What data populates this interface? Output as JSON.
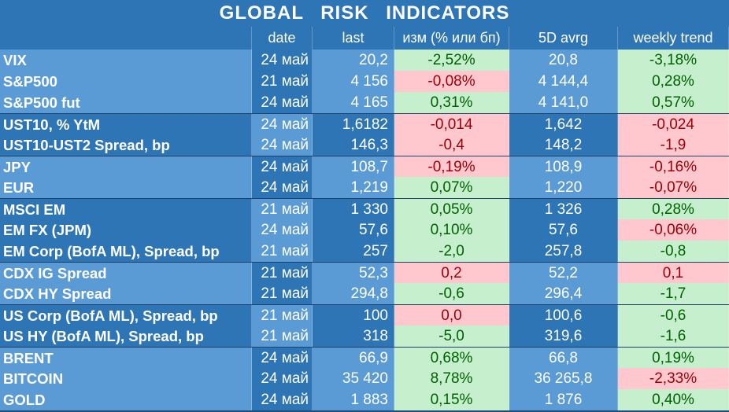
{
  "title": "GLOBAL   RISK   INDICATORS",
  "headers": [
    "",
    "date",
    "last",
    "изм (% или бп)",
    "5D avrg",
    "weekly trend"
  ],
  "rows": [
    {
      "name": "VIX",
      "date": "24 май",
      "last": "20,2",
      "chg": "-2,52%",
      "avg": "20,8",
      "trend": "-3,18%",
      "chg_sign": "pos",
      "trend_sign": "pos",
      "shade": "a",
      "group_start": false
    },
    {
      "name": "S&P500",
      "date": "21 май",
      "last": "4 156",
      "chg": "-0,08%",
      "avg": "4 144,4",
      "trend": "0,28%",
      "chg_sign": "neg",
      "trend_sign": "pos",
      "shade": "a",
      "group_start": false
    },
    {
      "name": "S&P500 fut",
      "date": "24 май",
      "last": "4 165",
      "chg": "0,31%",
      "avg": "4 141,0",
      "trend": "0,57%",
      "chg_sign": "pos",
      "trend_sign": "pos",
      "shade": "a",
      "group_start": false
    },
    {
      "name": "UST10, % YtM",
      "date": "24 май",
      "last": "1,6182",
      "chg": "-0,014",
      "avg": "1,642",
      "trend": "-0,024",
      "chg_sign": "neg",
      "trend_sign": "neg",
      "shade": "b",
      "group_start": true
    },
    {
      "name": "UST10-UST2 Spread, bp",
      "date": "24 май",
      "last": "146,3",
      "chg": "-0,4",
      "avg": "148,2",
      "trend": "-1,9",
      "chg_sign": "neg",
      "trend_sign": "neg",
      "shade": "b",
      "group_start": false
    },
    {
      "name": "JPY",
      "date": "24 май",
      "last": "108,7",
      "chg": "-0,19%",
      "avg": "108,9",
      "trend": "-0,16%",
      "chg_sign": "neg",
      "trend_sign": "neg",
      "shade": "a",
      "group_start": true
    },
    {
      "name": "EUR",
      "date": "24 май",
      "last": "1,219",
      "chg": "0,07%",
      "avg": "1,220",
      "trend": "-0,07%",
      "chg_sign": "pos",
      "trend_sign": "neg",
      "shade": "a",
      "group_start": false
    },
    {
      "name": "MSCI EM",
      "date": "21 май",
      "last": "1 330",
      "chg": "0,05%",
      "avg": "1 326",
      "trend": "0,28%",
      "chg_sign": "pos",
      "trend_sign": "pos",
      "shade": "b",
      "group_start": true
    },
    {
      "name": "EM FX (JPM)",
      "date": "24 май",
      "last": "57,6",
      "chg": "0,10%",
      "avg": "57,6",
      "trend": "-0,06%",
      "chg_sign": "pos",
      "trend_sign": "neg",
      "shade": "b",
      "group_start": false
    },
    {
      "name": "EM Corp (BofA ML), Spread, bp",
      "date": "21 май",
      "last": "257",
      "chg": "-2,0",
      "avg": "257,8",
      "trend": "-0,8",
      "chg_sign": "pos",
      "trend_sign": "pos",
      "shade": "b",
      "group_start": false
    },
    {
      "name": "CDX IG Spread",
      "date": "21 май",
      "last": "52,3",
      "chg": "0,2",
      "avg": "52,2",
      "trend": "0,1",
      "chg_sign": "neg",
      "trend_sign": "neg",
      "shade": "a",
      "group_start": true
    },
    {
      "name": "CDX HY Spread",
      "date": "21 май",
      "last": "294,8",
      "chg": "-0,6",
      "avg": "296,4",
      "trend": "-1,7",
      "chg_sign": "pos",
      "trend_sign": "pos",
      "shade": "a",
      "group_start": false
    },
    {
      "name": "US Corp (BofA ML), Spread, bp",
      "date": "21 май",
      "last": "100",
      "chg": "0,0",
      "avg": "100,6",
      "trend": "-0,6",
      "chg_sign": "neg",
      "trend_sign": "pos",
      "shade": "b",
      "group_start": true
    },
    {
      "name": "US HY (BofA ML), Spread, bp",
      "date": "21 май",
      "last": "318",
      "chg": "-5,0",
      "avg": "319,6",
      "trend": "-1,6",
      "chg_sign": "pos",
      "trend_sign": "pos",
      "shade": "b",
      "group_start": false
    },
    {
      "name": "BRENT",
      "date": "24 май",
      "last": "66,9",
      "chg": "0,68%",
      "avg": "66,8",
      "trend": "0,19%",
      "chg_sign": "pos",
      "trend_sign": "pos",
      "shade": "a",
      "group_start": true
    },
    {
      "name": "BITCOIN",
      "date": "24 май",
      "last": "35 420",
      "chg": "8,78%",
      "avg": "36 265,8",
      "trend": "-2,33%",
      "chg_sign": "pos",
      "trend_sign": "neg",
      "shade": "a",
      "group_start": false
    },
    {
      "name": "GOLD",
      "date": "24 май",
      "last": "1 883",
      "chg": "0,15%",
      "avg": "1 876",
      "trend": "0,40%",
      "chg_sign": "pos",
      "trend_sign": "pos",
      "shade": "a",
      "group_start": false
    }
  ]
}
